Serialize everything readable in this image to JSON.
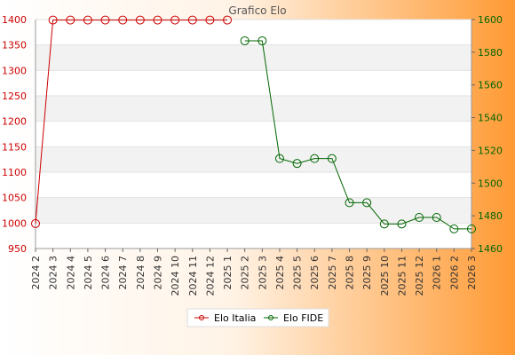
{
  "chart_data": {
    "type": "line",
    "title": "Grafico Elo",
    "categories": [
      "2024 2",
      "2024 3",
      "2024 4",
      "2024 5",
      "2024 6",
      "2024 7",
      "2024 8",
      "2024 9",
      "2024 10",
      "2024 11",
      "2024 12",
      "2025 1",
      "2025 2",
      "2025 3",
      "2025 4",
      "2025 5",
      "2025 6",
      "2025 7",
      "2025 8",
      "2025 9",
      "2025 10",
      "2025 11",
      "2025 12",
      "2026 1",
      "2026 2",
      "2026 3"
    ],
    "y_left": {
      "min": 950,
      "max": 1400,
      "ticks": [
        950,
        1000,
        1050,
        1100,
        1150,
        1200,
        1250,
        1300,
        1350,
        1400
      ],
      "color": "#cc0000"
    },
    "y_right": {
      "min": 1460,
      "max": 1600,
      "ticks": [
        1460,
        1480,
        1500,
        1520,
        1540,
        1560,
        1580,
        1600
      ],
      "color": "#006600"
    },
    "series": [
      {
        "name": "Elo Italia",
        "axis": "left",
        "color": "#cc0000",
        "values": [
          999,
          1399,
          1399,
          1399,
          1399,
          1399,
          1399,
          1399,
          1399,
          1399,
          1399,
          1399,
          null,
          null,
          null,
          null,
          null,
          null,
          null,
          null,
          null,
          null,
          null,
          null,
          null,
          null
        ]
      },
      {
        "name": "Elo FIDE",
        "axis": "right",
        "color": "#006600",
        "values": [
          null,
          null,
          null,
          null,
          null,
          null,
          null,
          null,
          null,
          null,
          null,
          null,
          1587,
          1587,
          1515,
          1512,
          1515,
          1515,
          1488,
          1488,
          1475,
          1475,
          1479,
          1479,
          1472,
          1472
        ]
      }
    ],
    "grid": true,
    "legend_position": "bottom"
  }
}
